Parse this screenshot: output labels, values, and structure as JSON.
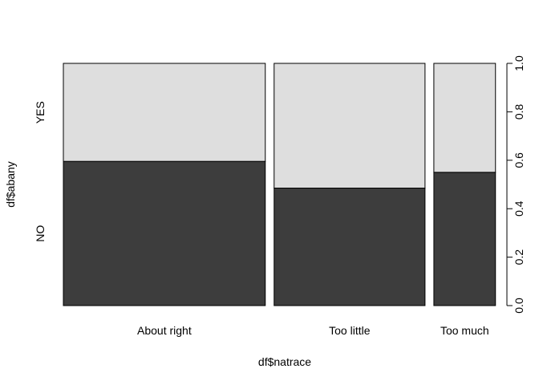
{
  "chart_data": {
    "type": "spineplot",
    "xlabel": "df$natrace",
    "ylabel": "df$abany",
    "categories": [
      "About right",
      "Too little",
      "Too much"
    ],
    "category_proportions": [
      0.475,
      0.355,
      0.145
    ],
    "series_levels": [
      "NO",
      "YES"
    ],
    "no_proportion": [
      0.595,
      0.485,
      0.55
    ],
    "ylim": [
      0,
      1
    ],
    "y_ticks": [
      "0.0",
      "0.2",
      "0.4",
      "0.6",
      "0.8",
      "1.0"
    ],
    "colors": {
      "NO": "#3d3d3d",
      "YES": "#dedede",
      "border": "#000000"
    },
    "grid": false
  }
}
